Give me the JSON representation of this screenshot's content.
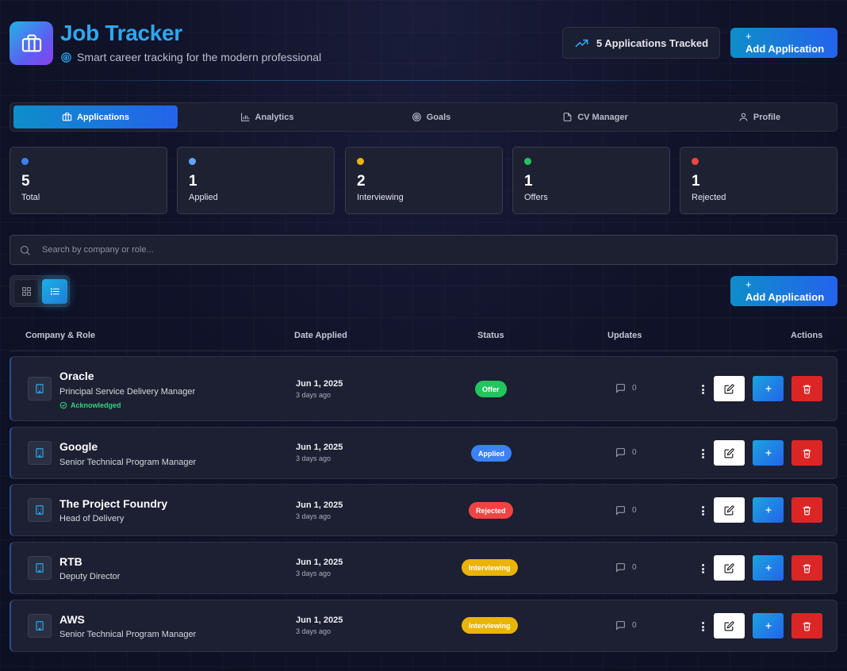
{
  "header": {
    "title": "Job Tracker",
    "subtitle": "Smart career tracking for the modern professional",
    "tracked_label": "5 Applications Tracked",
    "add_button_plus": "+",
    "add_button_label": "Add Application"
  },
  "tabs": [
    {
      "label": "Applications",
      "icon": "briefcase-icon",
      "active": true
    },
    {
      "label": "Analytics",
      "icon": "bar-chart-icon",
      "active": false
    },
    {
      "label": "Goals",
      "icon": "target-icon",
      "active": false
    },
    {
      "label": "CV Manager",
      "icon": "document-icon",
      "active": false
    },
    {
      "label": "Profile",
      "icon": "user-icon",
      "active": false
    }
  ],
  "stats": [
    {
      "value": "5",
      "label": "Total",
      "color": "#3b82f6"
    },
    {
      "value": "1",
      "label": "Applied",
      "color": "#60a5fa"
    },
    {
      "value": "2",
      "label": "Interviewing",
      "color": "#eab308"
    },
    {
      "value": "1",
      "label": "Offers",
      "color": "#22c55e"
    },
    {
      "value": "1",
      "label": "Rejected",
      "color": "#ef4444"
    }
  ],
  "search": {
    "placeholder": "Search by company or role...",
    "value": ""
  },
  "toolbar": {
    "add_button_plus": "+",
    "add_button_label": "Add Application",
    "view_mode": "list"
  },
  "table": {
    "columns": [
      "Company & Role",
      "Date Applied",
      "Status",
      "Updates",
      "Actions"
    ],
    "rows": [
      {
        "company": "Oracle",
        "role": "Principal Service Delivery Manager",
        "note": "Acknowledged",
        "date": "Jun 1, 2025",
        "ago": "3 days ago",
        "status": "Offer",
        "status_color": "#22c55e",
        "status_text_color": "#ffffff",
        "updates": "0"
      },
      {
        "company": "Google",
        "role": "Senior Technical Program Manager",
        "note": "",
        "date": "Jun 1, 2025",
        "ago": "3 days ago",
        "status": "Applied",
        "status_color": "#3b82f6",
        "status_text_color": "#ffffff",
        "updates": "0"
      },
      {
        "company": "The Project Foundry",
        "role": "Head of Delivery",
        "note": "",
        "date": "Jun 1, 2025",
        "ago": "3 days ago",
        "status": "Rejected",
        "status_color": "#ef4444",
        "status_text_color": "#ffffff",
        "updates": "0"
      },
      {
        "company": "RTB",
        "role": "Deputy Director",
        "note": "",
        "date": "Jun 1, 2025",
        "ago": "3 days ago",
        "status": "Interviewing",
        "status_color": "#eab308",
        "status_text_color": "#ffffff",
        "updates": "0"
      },
      {
        "company": "AWS",
        "role": "Senior Technical Program Manager",
        "note": "",
        "date": "Jun 1, 2025",
        "ago": "3 days ago",
        "status": "Interviewing",
        "status_color": "#eab308",
        "status_text_color": "#ffffff",
        "updates": "0"
      }
    ]
  }
}
